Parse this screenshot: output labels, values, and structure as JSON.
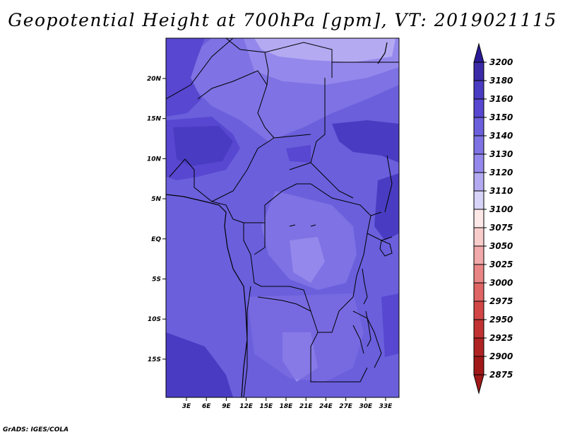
{
  "title": "Geopotential Height at 700hPa [gpm], VT: 2019021115",
  "credit": "GrADS: IGES/COLA",
  "map": {
    "lat_labels": [
      "20N",
      "15N",
      "10N",
      "5N",
      "EQ",
      "5S",
      "10S",
      "15S"
    ],
    "lon_labels": [
      "3E",
      "6E",
      "9E",
      "12E",
      "15E",
      "18E",
      "21E",
      "24E",
      "27E",
      "30E",
      "33E"
    ]
  },
  "colorbar": {
    "levels": [
      "3200",
      "3180",
      "3160",
      "3150",
      "3140",
      "3130",
      "3120",
      "3110",
      "3100",
      "3075",
      "3050",
      "3025",
      "3000",
      "2975",
      "2950",
      "2925",
      "2900",
      "2875"
    ],
    "colors": [
      "#2b1a95",
      "#3a2aa8",
      "#4a3cc2",
      "#5847d0",
      "#6b5fdc",
      "#7e72e4",
      "#9488ec",
      "#b4aaf2",
      "#d8d4f8",
      "#fde8e8",
      "#f9cccc",
      "#f2a9a9",
      "#e98585",
      "#df6464",
      "#d24646",
      "#c23232",
      "#b02323",
      "#a01818"
    ]
  }
}
